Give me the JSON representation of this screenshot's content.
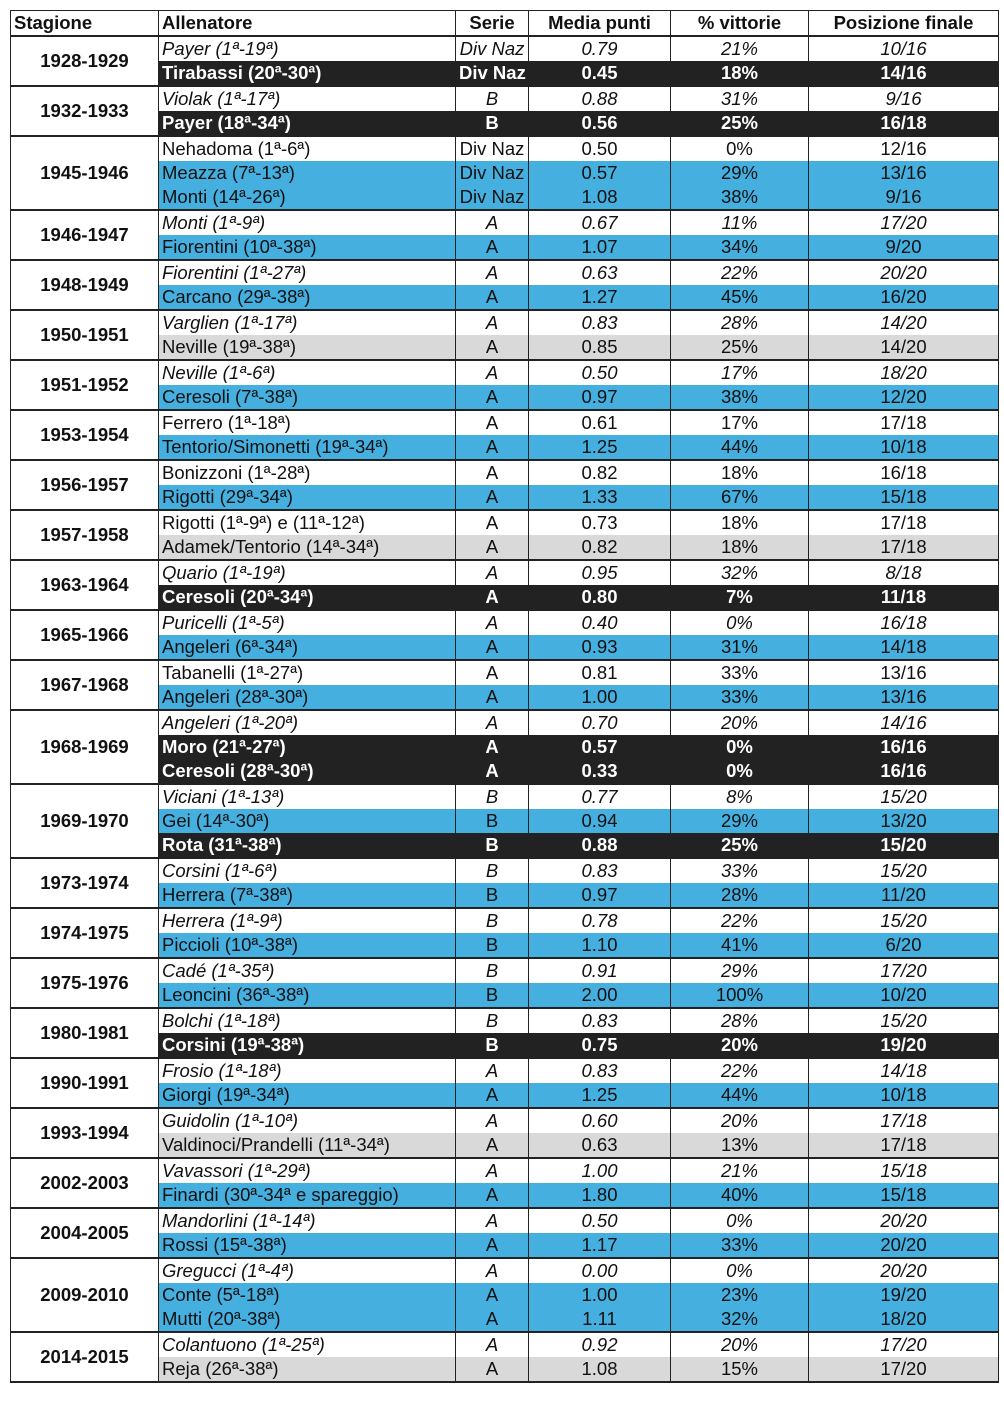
{
  "headers": [
    "Stagione",
    "Allenatore",
    "Serie",
    "Media punti",
    "% vittorie",
    "Posizione finale"
  ],
  "colors": {
    "blue": "#45b0e0",
    "dark": "#222222",
    "gray": "#d9d9d9"
  },
  "groups": [
    {
      "season": "1928-1929",
      "rows": [
        {
          "coach": "Payer (1ª-19ª)",
          "serie": "Div Naz",
          "media": "0.79",
          "pct": "21%",
          "pos": "10/16",
          "style": "italic"
        },
        {
          "coach": "Tirabassi (20ª-30ª)",
          "serie": "Div Naz",
          "media": "0.45",
          "pct": "18%",
          "pos": "14/16",
          "style": "dark"
        }
      ]
    },
    {
      "season": "1932-1933",
      "rows": [
        {
          "coach": "Violak (1ª-17ª)",
          "serie": "B",
          "media": "0.88",
          "pct": "31%",
          "pos": "9/16",
          "style": "italic"
        },
        {
          "coach": "Payer (18ª-34ª)",
          "serie": "B",
          "media": "0.56",
          "pct": "25%",
          "pos": "16/18",
          "style": "dark"
        }
      ]
    },
    {
      "season": "1945-1946",
      "rows": [
        {
          "coach": "Nehadoma (1ª-6ª)",
          "serie": "Div Naz",
          "media": "0.50",
          "pct": "0%",
          "pos": "12/16",
          "style": "plain"
        },
        {
          "coach": "Meazza (7ª-13ª)",
          "serie": "Div Naz",
          "media": "0.57",
          "pct": "29%",
          "pos": "13/16",
          "style": "blue"
        },
        {
          "coach": "Monti (14ª-26ª)",
          "serie": "Div Naz",
          "media": "1.08",
          "pct": "38%",
          "pos": "9/16",
          "style": "blue"
        }
      ]
    },
    {
      "season": "1946-1947",
      "rows": [
        {
          "coach": "Monti (1ª-9ª)",
          "serie": "A",
          "media": "0.67",
          "pct": "11%",
          "pos": "17/20",
          "style": "italic"
        },
        {
          "coach": "Fiorentini (10ª-38ª)",
          "serie": "A",
          "media": "1.07",
          "pct": "34%",
          "pos": "9/20",
          "style": "blue"
        }
      ]
    },
    {
      "season": "1948-1949",
      "rows": [
        {
          "coach": "Fiorentini (1ª-27ª)",
          "serie": "A",
          "media": "0.63",
          "pct": "22%",
          "pos": "20/20",
          "style": "italic"
        },
        {
          "coach": "Carcano (29ª-38ª)",
          "serie": "A",
          "media": "1.27",
          "pct": "45%",
          "pos": "16/20",
          "style": "blue"
        }
      ]
    },
    {
      "season": "1950-1951",
      "rows": [
        {
          "coach": "Varglien (1ª-17ª)",
          "serie": "A",
          "media": "0.83",
          "pct": "28%",
          "pos": "14/20",
          "style": "italic"
        },
        {
          "coach": "Neville (19ª-38ª)",
          "serie": "A",
          "media": "0.85",
          "pct": "25%",
          "pos": "14/20",
          "style": "gray"
        }
      ]
    },
    {
      "season": "1951-1952",
      "rows": [
        {
          "coach": "Neville (1ª-6ª)",
          "serie": "A",
          "media": "0.50",
          "pct": "17%",
          "pos": "18/20",
          "style": "italic"
        },
        {
          "coach": "Ceresoli (7ª-38ª)",
          "serie": "A",
          "media": "0.97",
          "pct": "38%",
          "pos": "12/20",
          "style": "blue"
        }
      ]
    },
    {
      "season": "1953-1954",
      "rows": [
        {
          "coach": "Ferrero (1ª-18ª)",
          "serie": "A",
          "media": "0.61",
          "pct": "17%",
          "pos": "17/18",
          "style": "plain"
        },
        {
          "coach": "Tentorio/Simonetti (19ª-34ª)",
          "serie": "A",
          "media": "1.25",
          "pct": "44%",
          "pos": "10/18",
          "style": "blue"
        }
      ]
    },
    {
      "season": "1956-1957",
      "rows": [
        {
          "coach": "Bonizzoni (1ª-28ª)",
          "serie": "A",
          "media": "0.82",
          "pct": "18%",
          "pos": "16/18",
          "style": "plain"
        },
        {
          "coach": "Rigotti (29ª-34ª)",
          "serie": "A",
          "media": "1.33",
          "pct": "67%",
          "pos": "15/18",
          "style": "blue"
        }
      ]
    },
    {
      "season": "1957-1958",
      "rows": [
        {
          "coach": "Rigotti (1ª-9ª) e (11ª-12ª)",
          "serie": "A",
          "media": "0.73",
          "pct": "18%",
          "pos": "17/18",
          "style": "plain"
        },
        {
          "coach": "Adamek/Tentorio (14ª-34ª)",
          "serie": "A",
          "media": "0.82",
          "pct": "18%",
          "pos": "17/18",
          "style": "gray"
        }
      ]
    },
    {
      "season": "1963-1964",
      "rows": [
        {
          "coach": "Quario (1ª-19ª)",
          "serie": "A",
          "media": "0.95",
          "pct": "32%",
          "pos": "8/18",
          "style": "italic"
        },
        {
          "coach": "Ceresoli (20ª-34ª)",
          "serie": "A",
          "media": "0.80",
          "pct": "7%",
          "pos": "11/18",
          "style": "dark"
        }
      ]
    },
    {
      "season": "1965-1966",
      "rows": [
        {
          "coach": "Puricelli (1ª-5ª)",
          "serie": "A",
          "media": "0.40",
          "pct": "0%",
          "pos": "16/18",
          "style": "italic"
        },
        {
          "coach": "Angeleri (6ª-34ª)",
          "serie": "A",
          "media": "0.93",
          "pct": "31%",
          "pos": "14/18",
          "style": "blue"
        }
      ]
    },
    {
      "season": "1967-1968",
      "rows": [
        {
          "coach": "Tabanelli (1ª-27ª)",
          "serie": "A",
          "media": "0.81",
          "pct": "33%",
          "pos": "13/16",
          "style": "plain"
        },
        {
          "coach": "Angeleri (28ª-30ª)",
          "serie": "A",
          "media": "1.00",
          "pct": "33%",
          "pos": "13/16",
          "style": "blue"
        }
      ]
    },
    {
      "season": "1968-1969",
      "rows": [
        {
          "coach": "Angeleri (1ª-20ª)",
          "serie": "A",
          "media": "0.70",
          "pct": "20%",
          "pos": "14/16",
          "style": "italic"
        },
        {
          "coach": "Moro (21ª-27ª)",
          "serie": "A",
          "media": "0.57",
          "pct": "0%",
          "pos": "16/16",
          "style": "dark"
        },
        {
          "coach": "Ceresoli (28ª-30ª)",
          "serie": "A",
          "media": "0.33",
          "pct": "0%",
          "pos": "16/16",
          "style": "dark"
        }
      ]
    },
    {
      "season": "1969-1970",
      "rows": [
        {
          "coach": "Viciani (1ª-13ª)",
          "serie": "B",
          "media": "0.77",
          "pct": "8%",
          "pos": "15/20",
          "style": "italic"
        },
        {
          "coach": "Gei (14ª-30ª)",
          "serie": "B",
          "media": "0.94",
          "pct": "29%",
          "pos": "13/20",
          "style": "blue"
        },
        {
          "coach": "Rota (31ª-38ª)",
          "serie": "B",
          "media": "0.88",
          "pct": "25%",
          "pos": "15/20",
          "style": "dark"
        }
      ]
    },
    {
      "season": "1973-1974",
      "rows": [
        {
          "coach": "Corsini (1ª-6ª)",
          "serie": "B",
          "media": "0.83",
          "pct": "33%",
          "pos": "15/20",
          "style": "italic"
        },
        {
          "coach": "Herrera (7ª-38ª)",
          "serie": "B",
          "media": "0.97",
          "pct": "28%",
          "pos": "11/20",
          "style": "blue"
        }
      ]
    },
    {
      "season": "1974-1975",
      "rows": [
        {
          "coach": "Herrera (1ª-9ª)",
          "serie": "B",
          "media": "0.78",
          "pct": "22%",
          "pos": "15/20",
          "style": "italic"
        },
        {
          "coach": "Piccioli (10ª-38ª)",
          "serie": "B",
          "media": "1.10",
          "pct": "41%",
          "pos": "6/20",
          "style": "blue"
        }
      ]
    },
    {
      "season": "1975-1976",
      "rows": [
        {
          "coach": "Cadé (1ª-35ª)",
          "serie": "B",
          "media": "0.91",
          "pct": "29%",
          "pos": "17/20",
          "style": "italic"
        },
        {
          "coach": "Leoncini (36ª-38ª)",
          "serie": "B",
          "media": "2.00",
          "pct": "100%",
          "pos": "10/20",
          "style": "blue"
        }
      ]
    },
    {
      "season": "1980-1981",
      "rows": [
        {
          "coach": "Bolchi (1ª-18ª)",
          "serie": "B",
          "media": "0.83",
          "pct": "28%",
          "pos": "15/20",
          "style": "italic"
        },
        {
          "coach": "Corsini (19ª-38ª)",
          "serie": "B",
          "media": "0.75",
          "pct": "20%",
          "pos": "19/20",
          "style": "dark"
        }
      ]
    },
    {
      "season": "1990-1991",
      "rows": [
        {
          "coach": "Frosio (1ª-18ª)",
          "serie": "A",
          "media": "0.83",
          "pct": "22%",
          "pos": "14/18",
          "style": "italic"
        },
        {
          "coach": "Giorgi (19ª-34ª)",
          "serie": "A",
          "media": "1.25",
          "pct": "44%",
          "pos": "10/18",
          "style": "blue"
        }
      ]
    },
    {
      "season": "1993-1994",
      "rows": [
        {
          "coach": "Guidolin (1ª-10ª)",
          "serie": "A",
          "media": "0.60",
          "pct": "20%",
          "pos": "17/18",
          "style": "italic"
        },
        {
          "coach": "Valdinoci/Prandelli (11ª-34ª)",
          "serie": "A",
          "media": "0.63",
          "pct": "13%",
          "pos": "17/18",
          "style": "gray"
        }
      ]
    },
    {
      "season": "2002-2003",
      "rows": [
        {
          "coach": "Vavassori (1ª-29ª)",
          "serie": "A",
          "media": "1.00",
          "pct": "21%",
          "pos": "15/18",
          "style": "italic"
        },
        {
          "coach": "Finardi (30ª-34ª e spareggio)",
          "serie": "A",
          "media": "1.80",
          "pct": "40%",
          "pos": "15/18",
          "style": "blue"
        }
      ]
    },
    {
      "season": "2004-2005",
      "rows": [
        {
          "coach": "Mandorlini (1ª-14ª)",
          "serie": "A",
          "media": "0.50",
          "pct": "0%",
          "pos": "20/20",
          "style": "italic"
        },
        {
          "coach": "Rossi (15ª-38ª)",
          "serie": "A",
          "media": "1.17",
          "pct": "33%",
          "pos": "20/20",
          "style": "blue"
        }
      ]
    },
    {
      "season": "2009-2010",
      "rows": [
        {
          "coach": "Gregucci (1ª-4ª)",
          "serie": "A",
          "media": "0.00",
          "pct": "0%",
          "pos": "20/20",
          "style": "italic"
        },
        {
          "coach": "Conte (5ª-18ª)",
          "serie": "A",
          "media": "1.00",
          "pct": "23%",
          "pos": "19/20",
          "style": "blue"
        },
        {
          "coach": "Mutti (20ª-38ª)",
          "serie": "A",
          "media": "1.11",
          "pct": "32%",
          "pos": "18/20",
          "style": "blue"
        }
      ]
    },
    {
      "season": "2014-2015",
      "rows": [
        {
          "coach": "Colantuono (1ª-25ª)",
          "serie": "A",
          "media": "0.92",
          "pct": "20%",
          "pos": "17/20",
          "style": "italic"
        },
        {
          "coach": "Reja (26ª-38ª)",
          "serie": "A",
          "media": "1.08",
          "pct": "15%",
          "pos": "17/20",
          "style": "gray"
        }
      ]
    }
  ]
}
